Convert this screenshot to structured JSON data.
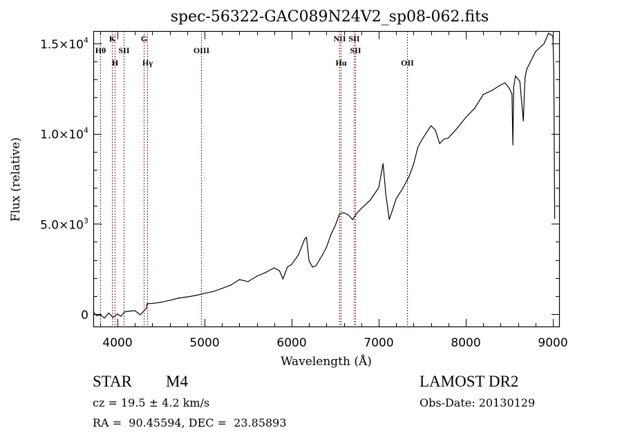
{
  "chart_data": {
    "type": "line",
    "title": "spec-56322-GAC089N24V2_sp08-062.fits",
    "xlabel": "Wavelength (Å)",
    "ylabel": "Flux (relative)",
    "xlim": [
      3722,
      9079
    ],
    "ylim": [
      -730,
      15690
    ],
    "xticks": [
      4000,
      5000,
      6000,
      7000,
      8000,
      9000
    ],
    "xtick_labels": [
      "4000",
      "5000",
      "6000",
      "7000",
      "8000",
      "9000"
    ],
    "yticks": [
      0,
      5000,
      10000,
      15000
    ],
    "ytick_labels": [
      {
        "mant": "0",
        "exp": ""
      },
      {
        "mant": "5.0×10",
        "exp": "3"
      },
      {
        "mant": "1.0×10",
        "exp": "4"
      },
      {
        "mant": "1.5×10",
        "exp": "4"
      }
    ],
    "grid": false,
    "series": [
      {
        "name": "spectrum",
        "x": [
          3722,
          3760,
          3800,
          3850,
          3900,
          3950,
          4000,
          4040,
          4080,
          4120,
          4200,
          4260,
          4330,
          4340,
          4420,
          4500,
          4600,
          4700,
          4800,
          4900,
          5000,
          5100,
          5200,
          5300,
          5400,
          5500,
          5600,
          5700,
          5800,
          5860,
          5900,
          5950,
          6000,
          6080,
          6150,
          6170,
          6200,
          6240,
          6280,
          6350,
          6400,
          6450,
          6500,
          6550,
          6600,
          6650,
          6700,
          6750,
          6800,
          6900,
          7000,
          7050,
          7080,
          7100,
          7120,
          7160,
          7200,
          7280,
          7350,
          7400,
          7450,
          7500,
          7600,
          7650,
          7700,
          7750,
          7800,
          7900,
          8000,
          8100,
          8200,
          8300,
          8400,
          8450,
          8500,
          8530,
          8540,
          8550,
          8570,
          8620,
          8660,
          8680,
          8700,
          8800,
          8900,
          8950,
          9000,
          9010,
          9020
        ],
        "y": [
          115,
          -100,
          -40,
          -220,
          60,
          -190,
          0,
          -120,
          115,
          150,
          190,
          -40,
          300,
          570,
          600,
          650,
          760,
          880,
          950,
          1030,
          1150,
          1250,
          1420,
          1600,
          1910,
          1800,
          2100,
          2300,
          2560,
          2400,
          1950,
          2600,
          2750,
          3300,
          4170,
          4250,
          2950,
          2600,
          2680,
          3250,
          3700,
          4400,
          4900,
          5550,
          5620,
          5500,
          5240,
          5600,
          5850,
          6300,
          7000,
          8340,
          6700,
          6000,
          5240,
          5800,
          6390,
          7000,
          7650,
          8300,
          9260,
          9700,
          10440,
          10200,
          9450,
          9700,
          9760,
          10300,
          10900,
          11400,
          12170,
          12400,
          12700,
          12820,
          12510,
          12200,
          9370,
          12600,
          13200,
          12900,
          10710,
          13100,
          13580,
          14540,
          15000,
          15570,
          15420,
          13500,
          5300
        ]
      }
    ],
    "spectral_lines": [
      {
        "name": "Hθ",
        "wavelength": 3798,
        "row": 2
      },
      {
        "name": "K",
        "wavelength": 3934,
        "row": 1
      },
      {
        "name": "H",
        "wavelength": 3969,
        "row": 3
      },
      {
        "name": "SII",
        "wavelength": 4072,
        "row": 2
      },
      {
        "name": "G",
        "wavelength": 4305,
        "row": 1
      },
      {
        "name": "Hγ",
        "wavelength": 4341,
        "row": 3
      },
      {
        "name": "OIII",
        "wavelength": 4960,
        "row": 2
      },
      {
        "name": "NII",
        "wavelength": 6548,
        "row": 1
      },
      {
        "name": "Hα",
        "wavelength": 6563,
        "row": 3
      },
      {
        "name": "SII",
        "wavelength": 6716,
        "row": 1
      },
      {
        "name": "SII",
        "wavelength": 6731,
        "row": 2
      },
      {
        "name": "OII",
        "wavelength": 7325,
        "row": 3
      }
    ],
    "line_color": "#8b1a1a",
    "series_color": "#000000"
  },
  "info": {
    "object_class": "STAR",
    "subclass": "M4",
    "cz": "cz = 19.5 ± 4.2 km/s",
    "coords": "RA =  90.45594, DEC =  23.85893",
    "survey": "LAMOST DR2",
    "obs_date": "Obs-Date: 20130129"
  }
}
